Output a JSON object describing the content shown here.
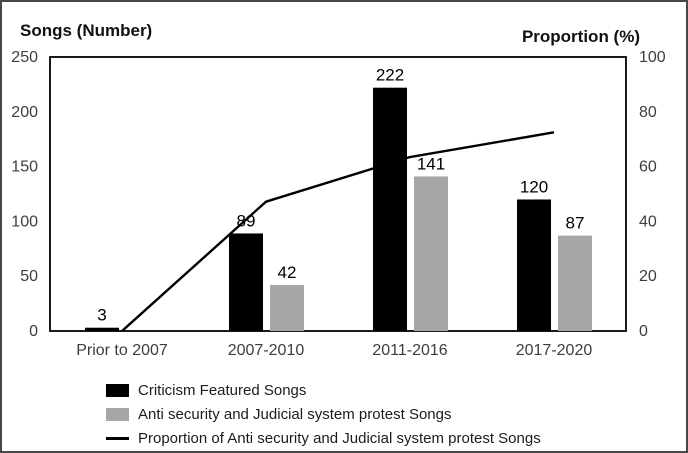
{
  "figure": {
    "background_color": "#ffffff",
    "frame_border_color": "#474747"
  },
  "chart_data": {
    "type": "bar",
    "subtype": "combo-bar-line-dual-axis",
    "title": "",
    "grid": false,
    "legend_position": "bottom-left",
    "categories": [
      "Prior to 2007",
      "2007-2010",
      "2011-2016",
      "2017-2020"
    ],
    "left_axis": {
      "title": "Songs (Number)",
      "min": 0,
      "max": 250,
      "ticks": [
        0,
        50,
        100,
        150,
        200,
        250
      ]
    },
    "right_axis": {
      "title": "Proportion (%)",
      "min": 0,
      "max": 100,
      "ticks": [
        0,
        20,
        40,
        60,
        80,
        100
      ]
    },
    "series": [
      {
        "name": "Criticism Featured Songs",
        "type": "bar",
        "axis": "left",
        "color": "#000000",
        "values": [
          3,
          89,
          222,
          120
        ],
        "data_labels": [
          "3",
          "89",
          "222",
          "120"
        ]
      },
      {
        "name": "Anti security and Judicial system protest Songs",
        "type": "bar",
        "axis": "left",
        "color": "#a6a6a6",
        "values": [
          null,
          42,
          141,
          87
        ],
        "data_labels": [
          "",
          "42",
          "141",
          "87"
        ]
      },
      {
        "name": "Proportion of Anti security and Judicial system protest Songs",
        "type": "line",
        "axis": "right",
        "color": "#000000",
        "values": [
          0,
          47.2,
          63.5,
          72.5
        ]
      }
    ]
  }
}
